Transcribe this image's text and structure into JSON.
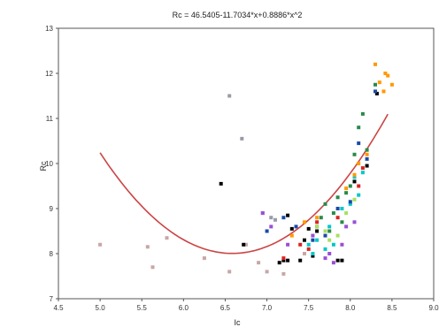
{
  "chart_data": {
    "type": "scatter",
    "title": "Rc = 46.5405-11.7034*x+0.8886*x^2",
    "xlabel": "Ic",
    "ylabel": "Rc",
    "xlim": [
      4.5,
      9.0
    ],
    "ylim": [
      7,
      13
    ],
    "xticks": [
      "4.5",
      "5.0",
      "5.5",
      "6.0",
      "6.5",
      "7.0",
      "7.5",
      "8.0",
      "8.5",
      "9.0"
    ],
    "yticks": [
      "7",
      "8",
      "9",
      "10",
      "11",
      "12",
      "13"
    ],
    "grid": false,
    "fit_curve": {
      "name": "",
      "coefficients": [
        46.5405,
        -11.7034,
        0.8886
      ],
      "x_range": [
        5.0,
        8.45
      ],
      "color": "#cc4444"
    },
    "series": [
      {
        "color": "#c9a6a6",
        "points": [
          [
            5.0,
            8.2
          ],
          [
            5.57,
            8.15
          ],
          [
            5.63,
            7.7
          ],
          [
            5.8,
            8.35
          ],
          [
            6.25,
            7.9
          ],
          [
            6.55,
            7.6
          ],
          [
            6.75,
            8.2
          ],
          [
            6.9,
            7.8
          ],
          [
            7.0,
            7.6
          ],
          [
            7.2,
            7.55
          ],
          [
            7.45,
            8.0
          ]
        ]
      },
      {
        "color": "#9a9aa8",
        "points": [
          [
            6.55,
            11.5
          ],
          [
            6.7,
            10.55
          ],
          [
            6.95,
            8.9
          ],
          [
            7.05,
            8.8
          ],
          [
            7.1,
            8.75
          ]
        ]
      },
      {
        "color": "#000000",
        "points": [
          [
            6.45,
            9.55
          ],
          [
            6.72,
            8.2
          ],
          [
            7.15,
            7.8
          ],
          [
            7.2,
            7.85
          ],
          [
            7.25,
            8.85
          ],
          [
            7.25,
            7.85
          ],
          [
            7.3,
            8.55
          ],
          [
            7.4,
            7.85
          ],
          [
            7.45,
            8.3
          ],
          [
            7.5,
            8.55
          ],
          [
            7.55,
            7.95
          ],
          [
            7.6,
            8.5
          ],
          [
            7.85,
            7.85
          ],
          [
            7.9,
            7.85
          ],
          [
            8.05,
            9.6
          ],
          [
            8.2,
            9.95
          ],
          [
            8.32,
            11.55
          ]
        ]
      },
      {
        "color": "#2a8a4a",
        "points": [
          [
            7.6,
            8.6
          ],
          [
            7.65,
            8.8
          ],
          [
            7.7,
            9.1
          ],
          [
            7.75,
            8.5
          ],
          [
            7.8,
            8.9
          ],
          [
            7.85,
            9.25
          ],
          [
            7.9,
            8.7
          ],
          [
            7.95,
            9.35
          ],
          [
            8.0,
            9.5
          ],
          [
            8.05,
            10.2
          ],
          [
            8.1,
            10.8
          ],
          [
            8.15,
            11.1
          ],
          [
            8.2,
            10.3
          ],
          [
            8.3,
            11.75
          ]
        ]
      },
      {
        "color": "#00c8c8",
        "points": [
          [
            7.5,
            8.2
          ],
          [
            7.55,
            8.0
          ],
          [
            7.6,
            8.3
          ],
          [
            7.7,
            8.1
          ],
          [
            7.75,
            8.6
          ],
          [
            7.8,
            8.2
          ],
          [
            7.9,
            9.0
          ],
          [
            8.0,
            9.1
          ],
          [
            8.05,
            9.7
          ],
          [
            8.1,
            9.3
          ],
          [
            8.15,
            9.8
          ]
        ]
      },
      {
        "color": "#ff9900",
        "points": [
          [
            7.3,
            8.4
          ],
          [
            7.45,
            8.7
          ],
          [
            7.6,
            8.8
          ],
          [
            7.95,
            9.45
          ],
          [
            8.05,
            9.75
          ],
          [
            8.1,
            10.0
          ],
          [
            8.2,
            10.2
          ],
          [
            8.3,
            12.2
          ],
          [
            8.35,
            11.8
          ],
          [
            8.4,
            11.6
          ],
          [
            8.45,
            11.95
          ],
          [
            8.5,
            11.75
          ],
          [
            8.42,
            12.0
          ]
        ]
      },
      {
        "color": "#9a4fd6",
        "points": [
          [
            6.95,
            8.9
          ],
          [
            7.05,
            8.6
          ],
          [
            7.25,
            8.2
          ],
          [
            7.55,
            8.4
          ],
          [
            7.7,
            7.9
          ],
          [
            7.75,
            8.0
          ],
          [
            7.8,
            7.8
          ],
          [
            7.9,
            8.2
          ],
          [
            7.95,
            8.6
          ],
          [
            8.05,
            8.7
          ]
        ]
      },
      {
        "color": "#1a4aa8",
        "points": [
          [
            7.0,
            8.5
          ],
          [
            7.2,
            8.8
          ],
          [
            7.35,
            8.6
          ],
          [
            7.55,
            8.3
          ],
          [
            7.7,
            8.4
          ],
          [
            7.85,
            9.0
          ],
          [
            8.0,
            9.15
          ],
          [
            8.1,
            10.45
          ],
          [
            8.3,
            11.6
          ],
          [
            8.2,
            10.1
          ]
        ]
      },
      {
        "color": "#dd2222",
        "points": [
          [
            7.2,
            7.9
          ],
          [
            7.4,
            8.2
          ],
          [
            7.5,
            8.1
          ],
          [
            7.6,
            8.7
          ],
          [
            7.85,
            8.8
          ],
          [
            8.1,
            9.5
          ],
          [
            8.15,
            9.9
          ]
        ]
      },
      {
        "color": "#a8e060",
        "points": [
          [
            7.6,
            8.6
          ],
          [
            7.7,
            8.5
          ],
          [
            7.75,
            8.3
          ],
          [
            7.85,
            8.4
          ],
          [
            7.95,
            8.9
          ],
          [
            8.05,
            9.2
          ]
        ]
      }
    ]
  }
}
